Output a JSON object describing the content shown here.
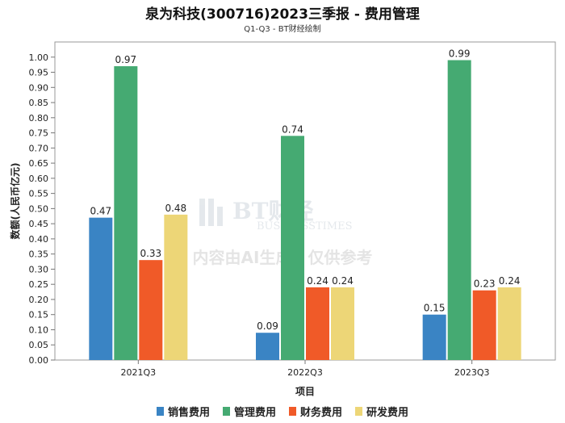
{
  "header": {
    "title": "泉为科技(300716)2023三季报 - 费用管理",
    "subtitle": "Q1-Q3 - BT财经绘制"
  },
  "watermark": {
    "logo_text": "BT财经",
    "logo_sub": "BUSINESSTIMES",
    "notice": "内容由AI生成，仅供参考"
  },
  "chart_data": {
    "type": "bar",
    "title": "泉为科技(300716)2023三季报 - 费用管理",
    "subtitle": "Q1-Q3 - BT财经绘制",
    "xlabel": "项目",
    "ylabel": "数额(人民币亿元)",
    "categories": [
      "2021Q3",
      "2022Q3",
      "2023Q3"
    ],
    "ylim": [
      0,
      1.05
    ],
    "yticks": [
      "0.00",
      "0.05",
      "0.10",
      "0.15",
      "0.20",
      "0.25",
      "0.30",
      "0.35",
      "0.40",
      "0.45",
      "0.50",
      "0.55",
      "0.60",
      "0.65",
      "0.70",
      "0.75",
      "0.80",
      "0.85",
      "0.90",
      "0.95",
      "1.00"
    ],
    "grid": false,
    "legend_position": "bottom",
    "series": [
      {
        "name": "销售费用",
        "color": "#3a84c4",
        "values": [
          0.47,
          0.09,
          0.15
        ],
        "labels": [
          "0.47",
          "0.09",
          "0.15"
        ]
      },
      {
        "name": "管理费用",
        "color": "#45aa72",
        "values": [
          0.97,
          0.74,
          0.99
        ],
        "labels": [
          "0.97",
          "0.74",
          "0.99"
        ]
      },
      {
        "name": "财务费用",
        "color": "#f05a28",
        "values": [
          0.33,
          0.24,
          0.23
        ],
        "labels": [
          "0.33",
          "0.24",
          "0.23"
        ]
      },
      {
        "name": "研发费用",
        "color": "#edd677",
        "values": [
          0.48,
          0.24,
          0.24
        ],
        "labels": [
          "0.48",
          "0.24",
          "0.24"
        ]
      }
    ]
  }
}
